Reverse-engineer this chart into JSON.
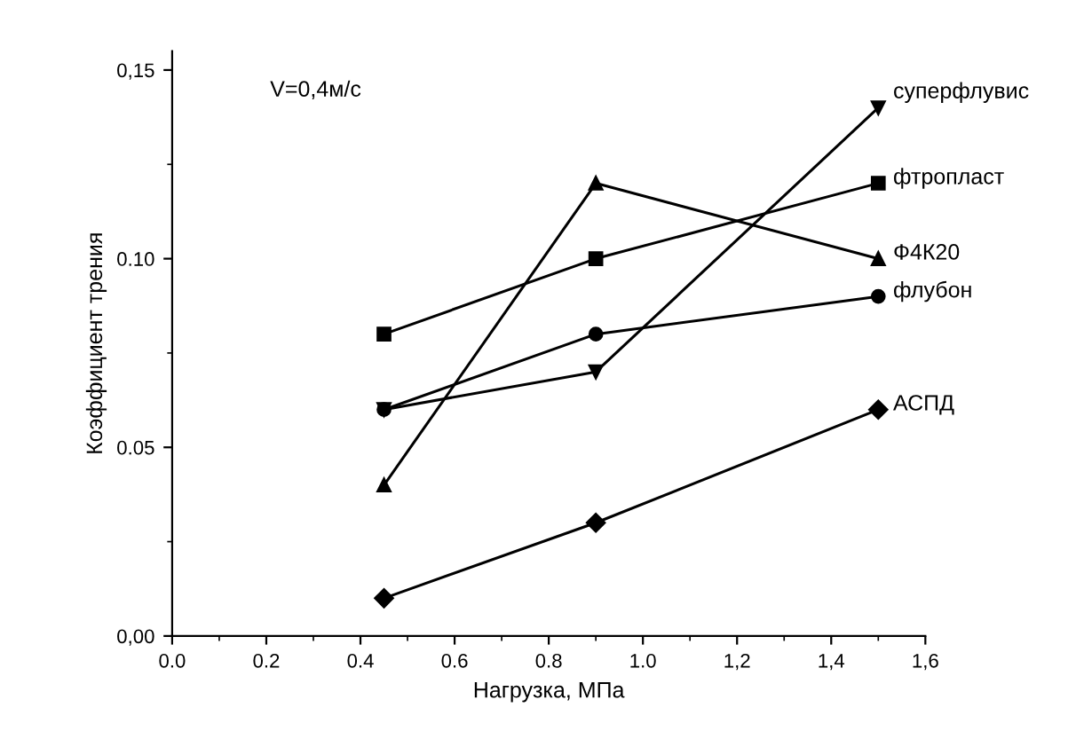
{
  "chart_data": {
    "type": "line",
    "xlabel": "Нагрузка, МПа",
    "ylabel": "Коэффициент трения",
    "annotations": [
      "V=0,4м/с"
    ],
    "x": [
      0.45,
      0.9,
      1.5
    ],
    "series": [
      {
        "name": "суперфлувис",
        "color": "#000000",
        "marker": "triangle_down",
        "values": [
          0.06,
          0.07,
          0.14
        ]
      },
      {
        "name": "фтропласт",
        "color": "#000000",
        "marker": "square",
        "values": [
          0.08,
          0.1,
          0.12
        ]
      },
      {
        "name": "Ф4К20",
        "color": "#000000",
        "marker": "triangle",
        "values": [
          0.04,
          0.12,
          0.1
        ]
      },
      {
        "name": "флубон",
        "color": "#000000",
        "marker": "circle",
        "values": [
          0.06,
          0.08,
          0.09
        ]
      },
      {
        "name": "АСПД",
        "color": "#000000",
        "marker": "diamond",
        "values": [
          0.01,
          0.03,
          0.06
        ]
      }
    ],
    "xlim": [
      0,
      1.6
    ],
    "ylim": [
      0,
      0.155
    ],
    "xticks": [
      {
        "value": 0,
        "label": "0.0"
      },
      {
        "value": 0.2,
        "label": "0.2"
      },
      {
        "value": 0.4,
        "label": "0.4"
      },
      {
        "value": 0.6,
        "label": "0.6"
      },
      {
        "value": 0.8,
        "label": "0.8"
      },
      {
        "value": 1.0,
        "label": "1.0"
      },
      {
        "value": 1.2,
        "label": "1,2"
      },
      {
        "value": 1.4,
        "label": "1,4"
      },
      {
        "value": 1.6,
        "label": "1,6"
      }
    ],
    "yticks": [
      {
        "value": 0,
        "label": "0,00"
      },
      {
        "value": 0.05,
        "label": "0.05"
      },
      {
        "value": 0.1,
        "label": "0.10"
      },
      {
        "value": 0.15,
        "label": "0,15"
      }
    ],
    "grid": false,
    "legend": false,
    "line_style": "solid"
  }
}
